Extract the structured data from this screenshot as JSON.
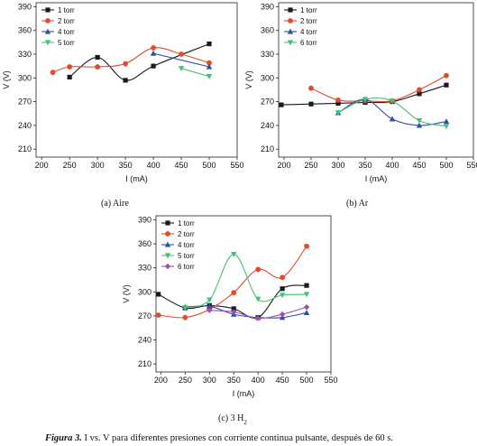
{
  "figure_caption": {
    "label": "Figura 3.",
    "text": " I vs. V para diferentes presiones con corriente continua pulsante, después de 60 s."
  },
  "chart_data": [
    {
      "type": "line",
      "subcaption": "(a)  Aire",
      "xlabel": "I (mA)",
      "ylabel": "V (V)",
      "xlim": [
        190,
        550
      ],
      "ylim": [
        200,
        395
      ],
      "xticks": [
        200,
        250,
        300,
        350,
        400,
        450,
        500,
        550
      ],
      "yticks": [
        210,
        240,
        270,
        300,
        330,
        360,
        390
      ],
      "grid": false,
      "legend_position": "top-left",
      "series": [
        {
          "name": "1 torr",
          "color": "#1a1a1a",
          "marker": "square",
          "x": [
            250,
            300,
            350,
            400,
            500
          ],
          "y": [
            301,
            326,
            297,
            315,
            343
          ]
        },
        {
          "name": "2 torr",
          "color": "#e8472a",
          "marker": "circle",
          "x": [
            220,
            250,
            300,
            350,
            400,
            450,
            500
          ],
          "y": [
            307,
            314,
            314,
            318,
            338,
            330,
            319
          ]
        },
        {
          "name": "4 torr",
          "color": "#2e4fa8",
          "marker": "triangle-up",
          "x": [
            400,
            500
          ],
          "y": [
            331,
            314
          ]
        },
        {
          "name": "5 torr",
          "color": "#45c178",
          "marker": "triangle-down",
          "x": [
            450,
            500
          ],
          "y": [
            312,
            302
          ]
        }
      ]
    },
    {
      "type": "line",
      "subcaption": "(b)  Ar",
      "xlabel": "I (mA)",
      "ylabel": "V (V)",
      "xlim": [
        190,
        550
      ],
      "ylim": [
        200,
        395
      ],
      "xticks": [
        200,
        250,
        300,
        350,
        400,
        450,
        500,
        550
      ],
      "yticks": [
        210,
        240,
        270,
        300,
        330,
        360,
        390
      ],
      "grid": false,
      "legend_position": "top-left",
      "series": [
        {
          "name": "1 torr",
          "color": "#1a1a1a",
          "marker": "square",
          "x": [
            195,
            250,
            300,
            350,
            400,
            450,
            500
          ],
          "y": [
            266,
            267,
            268,
            269,
            270,
            280,
            291
          ]
        },
        {
          "name": "2 torr",
          "color": "#e8472a",
          "marker": "circle",
          "x": [
            250,
            300,
            350,
            400,
            450,
            500
          ],
          "y": [
            287,
            272,
            271,
            271,
            285,
            303
          ]
        },
        {
          "name": "4 torr",
          "color": "#2e4fa8",
          "marker": "triangle-up",
          "x": [
            300,
            350,
            400,
            450,
            500
          ],
          "y": [
            256,
            273,
            248,
            240,
            245
          ]
        },
        {
          "name": "6 torr",
          "color": "#45c178",
          "marker": "triangle-down",
          "x": [
            300,
            350,
            400,
            450,
            500
          ],
          "y": [
            256,
            273,
            271,
            246,
            239
          ]
        }
      ]
    },
    {
      "type": "line",
      "subcaption_prefix": "(c)  3 H",
      "subcaption_subscript": "2",
      "xlabel": "I (mA)",
      "ylabel": "V (V)",
      "xlim": [
        190,
        550
      ],
      "ylim": [
        200,
        395
      ],
      "xticks": [
        200,
        250,
        300,
        350,
        400,
        450,
        500,
        550
      ],
      "yticks": [
        210,
        240,
        270,
        300,
        330,
        360,
        390
      ],
      "grid": false,
      "legend_position": "top-left",
      "series": [
        {
          "name": "1 torr",
          "color": "#1a1a1a",
          "marker": "square",
          "x": [
            195,
            250,
            300,
            350,
            400,
            450,
            500
          ],
          "y": [
            297,
            280,
            283,
            279,
            268,
            304,
            308
          ]
        },
        {
          "name": "2 torr",
          "color": "#e8472a",
          "marker": "circle",
          "x": [
            195,
            250,
            300,
            350,
            400,
            450,
            500
          ],
          "y": [
            271,
            268,
            278,
            299,
            328,
            318,
            357
          ]
        },
        {
          "name": "4 torr",
          "color": "#2e4fa8",
          "marker": "triangle-up",
          "x": [
            250,
            300,
            350,
            400,
            450,
            500
          ],
          "y": [
            281,
            282,
            272,
            268,
            268,
            274
          ]
        },
        {
          "name": "5 torr",
          "color": "#45c178",
          "marker": "triangle-down",
          "x": [
            250,
            300,
            350,
            400,
            450,
            500
          ],
          "y": [
            280,
            290,
            347,
            291,
            296,
            297
          ]
        },
        {
          "name": "6 torr",
          "color": "#9b4fb5",
          "marker": "diamond",
          "x": [
            300,
            350,
            400,
            450,
            500
          ],
          "y": [
            277,
            275,
            267,
            272,
            281
          ]
        }
      ]
    }
  ]
}
